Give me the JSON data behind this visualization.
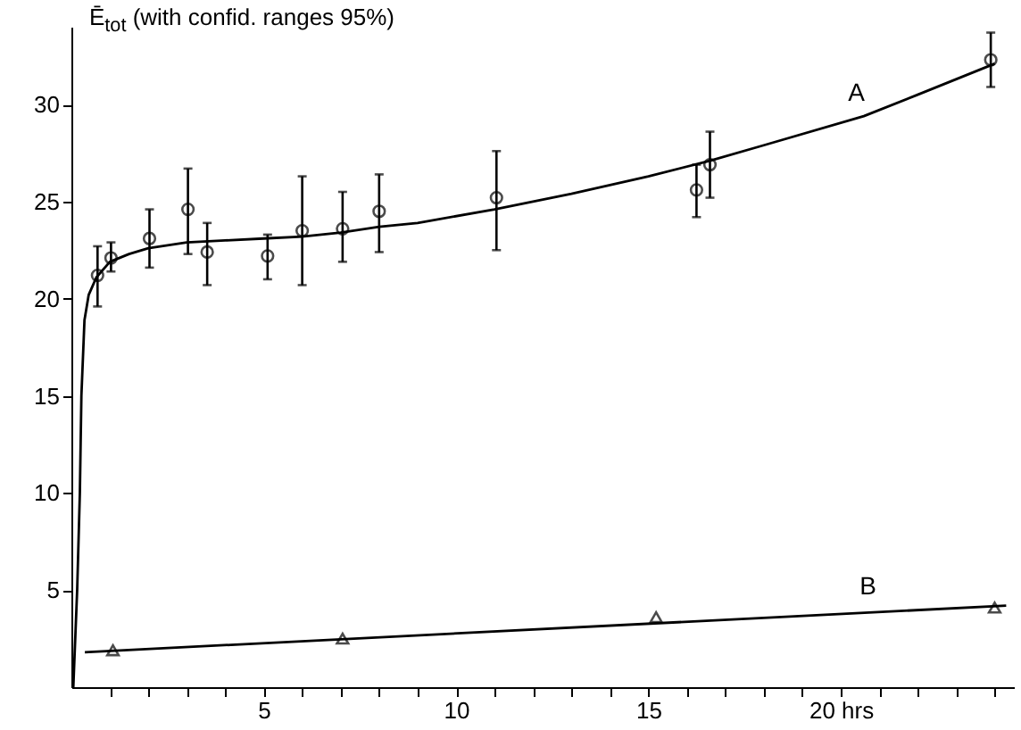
{
  "chart_data": {
    "type": "line",
    "ylabel": "Ē$_{tot}$ (with confid. ranges 95%)",
    "xlim": [
      0,
      24.5
    ],
    "ylim": [
      0,
      34
    ],
    "xticks": [
      {
        "value": 1,
        "label": null
      },
      {
        "value": 2,
        "label": null
      },
      {
        "value": 3,
        "label": null
      },
      {
        "value": 4,
        "label": null
      },
      5,
      {
        "value": 6,
        "label": null
      },
      {
        "value": 7,
        "label": null
      },
      {
        "value": 8,
        "label": null
      },
      {
        "value": 9,
        "label": null
      },
      10,
      {
        "value": 11,
        "label": null
      },
      {
        "value": 12,
        "label": null
      },
      {
        "value": 13,
        "label": null
      },
      {
        "value": 14,
        "label": null
      },
      15,
      {
        "value": 16,
        "label": null
      },
      {
        "value": 17,
        "label": null
      },
      {
        "value": 18,
        "label": null
      },
      {
        "value": 19,
        "label": null
      },
      {
        "value": 20,
        "label": "20 hrs"
      },
      {
        "value": 21,
        "label": null
      },
      {
        "value": 22,
        "label": null
      },
      {
        "value": 23,
        "label": null
      },
      {
        "value": 24,
        "label": null
      }
    ],
    "yticks": [
      5,
      10,
      15,
      20,
      25,
      30
    ],
    "grid": false,
    "series": [
      {
        "type": "line",
        "name": "A",
        "color": "#000000",
        "marker": "none",
        "x": [
          0.05,
          0.15,
          0.22,
          0.26,
          0.34,
          0.45,
          0.65,
          1.0,
          1.5,
          2,
          3,
          4,
          5,
          6,
          7,
          8,
          9,
          11,
          13,
          15,
          16.6,
          18,
          20.6,
          22,
          24
        ],
        "values": [
          0,
          5,
          10,
          15,
          18.9,
          20.2,
          21.1,
          21.9,
          22.3,
          22.6,
          22.9,
          23.0,
          23.1,
          23.2,
          23.4,
          23.7,
          23.9,
          24.6,
          25.4,
          26.3,
          27.1,
          27.9,
          29.4,
          30.5,
          32.1
        ]
      },
      {
        "type": "scatter",
        "color": "#000000",
        "marker": "circle",
        "x": [
          0.68,
          1.03,
          2.03,
          3.03,
          3.53,
          5.1,
          6.0,
          7.05,
          8.0,
          11.05,
          16.25,
          16.6,
          23.9
        ],
        "values": [
          21.2,
          22.1,
          23.1,
          24.6,
          22.4,
          22.2,
          23.5,
          23.6,
          24.5,
          25.2,
          25.6,
          26.9,
          32.3
        ],
        "errors": [
          [
            19.6,
            22.7
          ],
          [
            21.4,
            22.9
          ],
          [
            21.6,
            24.6
          ],
          [
            22.3,
            26.7
          ],
          [
            20.7,
            23.9
          ],
          [
            21.0,
            23.3
          ],
          [
            20.7,
            26.3
          ],
          [
            21.9,
            25.5
          ],
          [
            22.4,
            26.4
          ],
          [
            22.5,
            27.6
          ],
          [
            24.2,
            26.9
          ],
          [
            25.2,
            28.6
          ],
          [
            30.9,
            33.7
          ]
        ]
      },
      {
        "type": "line",
        "name": "B",
        "color": "#000000",
        "marker": "none",
        "x": [
          0.35,
          24.3
        ],
        "values": [
          1.8,
          4.2
        ]
      },
      {
        "type": "scatter",
        "color": "#000000",
        "marker": "triangle",
        "x": [
          1.08,
          7.05,
          15.2,
          24.0
        ],
        "values": [
          1.9,
          2.5,
          3.6,
          4.1
        ]
      }
    ]
  }
}
